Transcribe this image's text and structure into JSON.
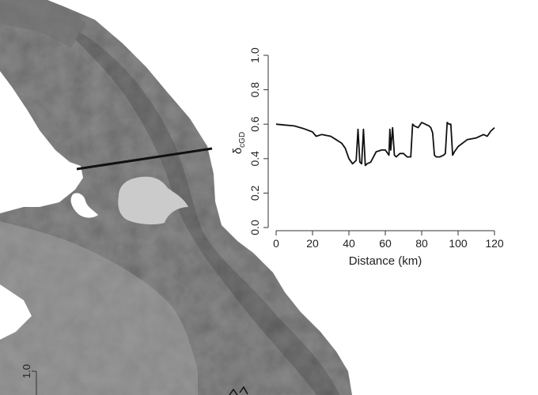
{
  "chart_data": {
    "type": "line",
    "title": "",
    "xlabel": "Distance (km)",
    "ylabel_main": "δ",
    "ylabel_sub": "cGD",
    "xlim": [
      0,
      120
    ],
    "ylim": [
      0,
      1
    ],
    "x_ticks": [
      "0",
      "20",
      "40",
      "60",
      "80",
      "100",
      "120"
    ],
    "y_ticks": [
      "0.0",
      "0.2",
      "0.4",
      "0.6",
      "0.8",
      "1.0"
    ],
    "grid": false,
    "series": [
      {
        "color": "#111111",
        "x": [
          0,
          5,
          10,
          15,
          20,
          22,
          25,
          30,
          33,
          36,
          38,
          40,
          42,
          44,
          45,
          46,
          47,
          48,
          49,
          50,
          52,
          55,
          58,
          60,
          62,
          62.5,
          63,
          64,
          65,
          66,
          68,
          70,
          72,
          74,
          75,
          76,
          78,
          80,
          82,
          84,
          85,
          86,
          87,
          88,
          90,
          92,
          93,
          94,
          95,
          96,
          97,
          98,
          100,
          105,
          110,
          114,
          116,
          118,
          120
        ],
        "y": [
          0.6,
          0.595,
          0.59,
          0.575,
          0.555,
          0.53,
          0.54,
          0.53,
          0.51,
          0.49,
          0.46,
          0.4,
          0.37,
          0.39,
          0.57,
          0.38,
          0.37,
          0.57,
          0.36,
          0.37,
          0.38,
          0.44,
          0.45,
          0.45,
          0.42,
          0.57,
          0.45,
          0.58,
          0.42,
          0.41,
          0.43,
          0.43,
          0.41,
          0.41,
          0.6,
          0.59,
          0.58,
          0.61,
          0.6,
          0.59,
          0.58,
          0.55,
          0.42,
          0.41,
          0.41,
          0.42,
          0.43,
          0.61,
          0.6,
          0.6,
          0.42,
          0.44,
          0.47,
          0.51,
          0.52,
          0.54,
          0.53,
          0.56,
          0.58
        ]
      }
    ]
  },
  "inset": {
    "y_tick_label": "1.0"
  },
  "colors": {
    "land_base": "#8f8f8f",
    "land_dark": "#6d6d6d",
    "land_light": "#a9a9a9",
    "lake": "#cbcbcb",
    "water": "#ffffff",
    "transect": "#111111"
  }
}
